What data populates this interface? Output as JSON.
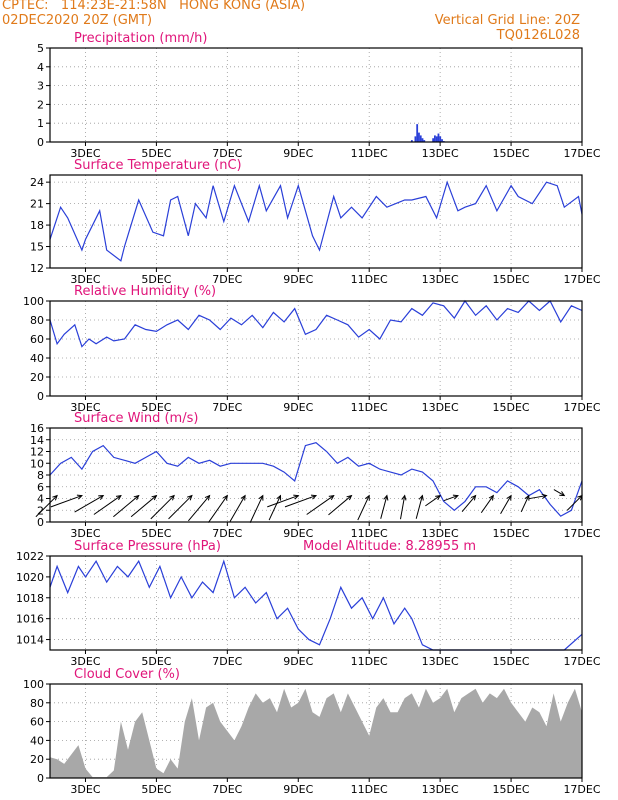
{
  "header": {
    "line1": "CPTEC:   114:23E-21:58N   HONG KONG (ASIA)",
    "line2": "02DEC2020 20Z (GMT)",
    "right1": "Vertical Grid Line: 20Z",
    "right2": "TQ0126L028"
  },
  "colors": {
    "header": "#e07a1a",
    "title": "#e0157a",
    "line": "#2a3fd8",
    "cloud": "#a8a8a8",
    "grid": "#9a9a9a",
    "frame": "#000000"
  },
  "x_axis": {
    "ticks": [
      "3DEC",
      "5DEC",
      "7DEC",
      "9DEC",
      "11DEC",
      "13DEC",
      "15DEC",
      "17DEC"
    ],
    "start": "2020-12-02T00Z",
    "end": "2020-12-17T00Z"
  },
  "panels": [
    {
      "id": "precip",
      "title": "Precipitation (mm/h)",
      "subtitle": "",
      "ylim": [
        0,
        5
      ],
      "yticks": [
        "0",
        "1",
        "2",
        "3",
        "4",
        "5"
      ]
    },
    {
      "id": "temp",
      "title": "Surface Temperature (nC)",
      "subtitle": "",
      "ylim": [
        12,
        25
      ],
      "yticks": [
        "12",
        "15",
        "18",
        "21",
        "24"
      ]
    },
    {
      "id": "rh",
      "title": "Relative Humidity (%)",
      "subtitle": "",
      "ylim": [
        0,
        100
      ],
      "yticks": [
        "0",
        "20",
        "40",
        "60",
        "80",
        "100"
      ]
    },
    {
      "id": "wind",
      "title": "Surface Wind (m/s)",
      "subtitle": "",
      "ylim": [
        0,
        16
      ],
      "yticks": [
        "0",
        "2",
        "4",
        "6",
        "8",
        "10",
        "12",
        "14",
        "16"
      ]
    },
    {
      "id": "pres",
      "title": "Surface Pressure (hPa)",
      "subtitle": "Model Altitude: 8.28955 m",
      "ylim": [
        1013,
        1022
      ],
      "yticks": [
        "1014",
        "1016",
        "1018",
        "1020",
        "1022"
      ]
    },
    {
      "id": "cloud",
      "title": "Cloud Cover (%)",
      "subtitle": "",
      "ylim": [
        0,
        100
      ],
      "yticks": [
        "0",
        "20",
        "40",
        "60",
        "80",
        "100"
      ]
    }
  ],
  "chart_data": [
    {
      "type": "bar",
      "panel": "precip",
      "title": "Precipitation (mm/h)",
      "xunit": "day of Dec 2020",
      "ylim": [
        0,
        5
      ],
      "x": [
        12.2,
        12.3,
        12.35,
        12.4,
        12.45,
        12.5,
        12.55,
        12.8,
        12.85,
        12.9,
        12.95,
        13.0,
        13.05,
        13.1,
        16.0
      ],
      "values": [
        0.1,
        0.3,
        0.95,
        0.5,
        0.35,
        0.2,
        0.1,
        0.2,
        0.35,
        0.3,
        0.45,
        0.3,
        0.15,
        0.05,
        0.02
      ]
    },
    {
      "type": "line",
      "panel": "temp",
      "title": "Surface Temperature (nC)",
      "xunit": "day of Dec 2020",
      "ylim": [
        12,
        25
      ],
      "x": [
        2.0,
        2.3,
        2.5,
        2.9,
        3.0,
        3.4,
        3.6,
        4.0,
        4.1,
        4.5,
        4.9,
        5.2,
        5.4,
        5.6,
        5.9,
        6.1,
        6.4,
        6.6,
        6.9,
        7.2,
        7.6,
        7.9,
        8.1,
        8.5,
        8.7,
        9.0,
        9.4,
        9.6,
        10.0,
        10.2,
        10.5,
        10.8,
        11.2,
        11.5,
        12.0,
        12.2,
        12.6,
        12.9,
        13.2,
        13.5,
        13.7,
        14.0,
        14.3,
        14.6,
        15.0,
        15.2,
        15.6,
        16.0,
        16.3,
        16.5,
        16.9,
        17.0
      ],
      "values": [
        16.0,
        20.5,
        19.0,
        14.5,
        16.0,
        20.0,
        14.5,
        13.0,
        15.0,
        21.5,
        17.0,
        16.5,
        21.5,
        22.0,
        16.5,
        21.0,
        19.0,
        23.5,
        18.5,
        23.5,
        18.5,
        23.5,
        20.0,
        23.5,
        19.0,
        23.5,
        16.5,
        14.5,
        22.0,
        19.0,
        20.5,
        19.0,
        22.0,
        20.5,
        21.5,
        21.5,
        22.0,
        19.0,
        24.0,
        20.0,
        20.5,
        21.0,
        23.5,
        20.0,
        23.5,
        22.0,
        21.0,
        24.0,
        23.5,
        20.5,
        22.0,
        19.5
      ]
    },
    {
      "type": "line",
      "panel": "rh",
      "title": "Relative Humidity (%)",
      "xunit": "day of Dec 2020",
      "ylim": [
        0,
        100
      ],
      "x": [
        2.0,
        2.2,
        2.4,
        2.7,
        2.9,
        3.1,
        3.3,
        3.6,
        3.8,
        4.1,
        4.4,
        4.7,
        5.0,
        5.3,
        5.6,
        5.9,
        6.2,
        6.5,
        6.8,
        7.1,
        7.4,
        7.7,
        8.0,
        8.3,
        8.6,
        8.9,
        9.2,
        9.5,
        9.8,
        10.1,
        10.4,
        10.7,
        11.0,
        11.3,
        11.6,
        11.9,
        12.2,
        12.5,
        12.8,
        13.1,
        13.4,
        13.7,
        14.0,
        14.3,
        14.6,
        14.9,
        15.2,
        15.5,
        15.8,
        16.1,
        16.4,
        16.7,
        17.0
      ],
      "values": [
        80,
        55,
        65,
        75,
        52,
        60,
        55,
        62,
        58,
        60,
        75,
        70,
        68,
        75,
        80,
        70,
        85,
        80,
        70,
        82,
        75,
        85,
        72,
        88,
        78,
        92,
        65,
        70,
        85,
        80,
        75,
        62,
        70,
        60,
        80,
        78,
        92,
        85,
        98,
        95,
        82,
        100,
        85,
        95,
        80,
        92,
        88,
        100,
        90,
        100,
        78,
        95,
        90
      ]
    },
    {
      "type": "line",
      "panel": "wind",
      "title": "Surface Wind (m/s)",
      "xunit": "day of Dec 2020",
      "ylim": [
        0,
        16
      ],
      "x": [
        2.0,
        2.3,
        2.6,
        2.9,
        3.2,
        3.5,
        3.8,
        4.1,
        4.4,
        4.7,
        5.0,
        5.3,
        5.6,
        5.9,
        6.2,
        6.5,
        6.8,
        7.1,
        7.4,
        7.7,
        8.0,
        8.3,
        8.6,
        8.9,
        9.2,
        9.5,
        9.8,
        10.1,
        10.4,
        10.7,
        11.0,
        11.3,
        11.6,
        11.9,
        12.2,
        12.5,
        12.8,
        13.1,
        13.4,
        13.7,
        14.0,
        14.3,
        14.6,
        14.9,
        15.2,
        15.5,
        15.8,
        16.1,
        16.4,
        16.7,
        17.0
      ],
      "values": [
        8,
        10,
        11,
        9,
        12,
        13,
        11,
        10.5,
        10,
        11,
        12,
        10,
        9.5,
        11,
        10,
        10.5,
        9.5,
        10,
        10,
        10,
        10,
        9.5,
        8.5,
        7,
        13,
        13.5,
        12,
        10,
        11,
        9.5,
        10,
        9,
        8.5,
        8,
        9,
        8.5,
        7,
        3.5,
        2,
        3.5,
        6,
        6,
        5,
        7,
        6,
        4.5,
        5.5,
        3,
        1,
        2,
        7
      ],
      "arrows": {
        "x": [
          2.2,
          2.9,
          3.5,
          4.0,
          4.5,
          5.0,
          5.5,
          6.0,
          6.5,
          7.0,
          7.5,
          8.0,
          8.5,
          9.0,
          9.5,
          10.0,
          10.5,
          11.0,
          11.5,
          12.0,
          12.5,
          13.0,
          13.5,
          14.0,
          14.5,
          15.0,
          15.5,
          16.0,
          16.5,
          17.0
        ],
        "dir": [
          225,
          200,
          210,
          215,
          220,
          220,
          225,
          225,
          230,
          235,
          240,
          245,
          245,
          200,
          200,
          215,
          220,
          245,
          255,
          260,
          255,
          215,
          200,
          230,
          235,
          240,
          245,
          190,
          150,
          225
        ],
        "speed": [
          8,
          9,
          9,
          9,
          9,
          9,
          9,
          9,
          9,
          9,
          8,
          8,
          7,
          9,
          9,
          9,
          8,
          7,
          6,
          6,
          6,
          4,
          3,
          5,
          5,
          5,
          4,
          4,
          2,
          5
        ]
      }
    },
    {
      "type": "line",
      "panel": "pres",
      "title": "Surface Pressure (hPa)",
      "subtitle": "Model Altitude: 8.28955 m",
      "xunit": "day of Dec 2020",
      "ylim": [
        1013,
        1022
      ],
      "x": [
        2.0,
        2.2,
        2.5,
        2.8,
        3.0,
        3.3,
        3.6,
        3.9,
        4.2,
        4.5,
        4.8,
        5.1,
        5.4,
        5.7,
        6.0,
        6.3,
        6.6,
        6.9,
        7.2,
        7.5,
        7.8,
        8.1,
        8.4,
        8.7,
        9.0,
        9.3,
        9.6,
        9.9,
        10.2,
        10.5,
        10.8,
        11.1,
        11.4,
        11.7,
        12.0,
        12.2,
        12.5,
        12.8,
        13.1,
        13.5,
        14.0,
        14.5,
        15.0,
        15.5,
        16.0,
        16.5,
        17.0
      ],
      "values": [
        1019,
        1021,
        1018.5,
        1021,
        1020,
        1021.5,
        1019.5,
        1021,
        1020,
        1021.5,
        1019,
        1021,
        1018,
        1020,
        1018,
        1019.5,
        1018.5,
        1021.5,
        1018,
        1019,
        1017.5,
        1018.5,
        1016,
        1017,
        1015,
        1014,
        1013.5,
        1016,
        1019,
        1017,
        1018,
        1016,
        1018,
        1015.5,
        1017,
        1016,
        1013.5,
        1013,
        1012.8,
        1013,
        1012.8,
        1013,
        1012.8,
        1013,
        1012.8,
        1013,
        1014.5
      ]
    },
    {
      "type": "area",
      "panel": "cloud",
      "title": "Cloud Cover (%)",
      "xunit": "day of Dec 2020",
      "ylim": [
        0,
        100
      ],
      "x": [
        2.0,
        2.2,
        2.4,
        2.6,
        2.8,
        3.0,
        3.2,
        3.4,
        3.6,
        3.8,
        4.0,
        4.2,
        4.4,
        4.6,
        4.8,
        5.0,
        5.2,
        5.4,
        5.6,
        5.8,
        6.0,
        6.2,
        6.4,
        6.6,
        6.8,
        7.0,
        7.2,
        7.4,
        7.6,
        7.8,
        8.0,
        8.2,
        8.4,
        8.6,
        8.8,
        9.0,
        9.2,
        9.4,
        9.6,
        9.8,
        10.0,
        10.2,
        10.4,
        10.6,
        10.8,
        11.0,
        11.2,
        11.4,
        11.6,
        11.8,
        12.0,
        12.2,
        12.4,
        12.6,
        12.8,
        13.0,
        13.2,
        13.4,
        13.6,
        13.8,
        14.0,
        14.2,
        14.4,
        14.6,
        14.8,
        15.0,
        15.2,
        15.4,
        15.6,
        15.8,
        16.0,
        16.2,
        16.4,
        16.6,
        16.8,
        17.0
      ],
      "values": [
        22,
        20,
        15,
        25,
        35,
        10,
        1,
        1,
        1,
        8,
        60,
        30,
        60,
        70,
        40,
        10,
        5,
        20,
        10,
        60,
        85,
        40,
        75,
        80,
        60,
        50,
        40,
        55,
        75,
        90,
        80,
        85,
        70,
        95,
        75,
        80,
        95,
        70,
        65,
        85,
        90,
        70,
        90,
        75,
        60,
        45,
        75,
        85,
        70,
        70,
        85,
        90,
        75,
        95,
        80,
        85,
        95,
        70,
        85,
        90,
        95,
        80,
        90,
        85,
        95,
        80,
        70,
        60,
        75,
        70,
        55,
        90,
        60,
        80,
        95,
        70
      ]
    }
  ]
}
